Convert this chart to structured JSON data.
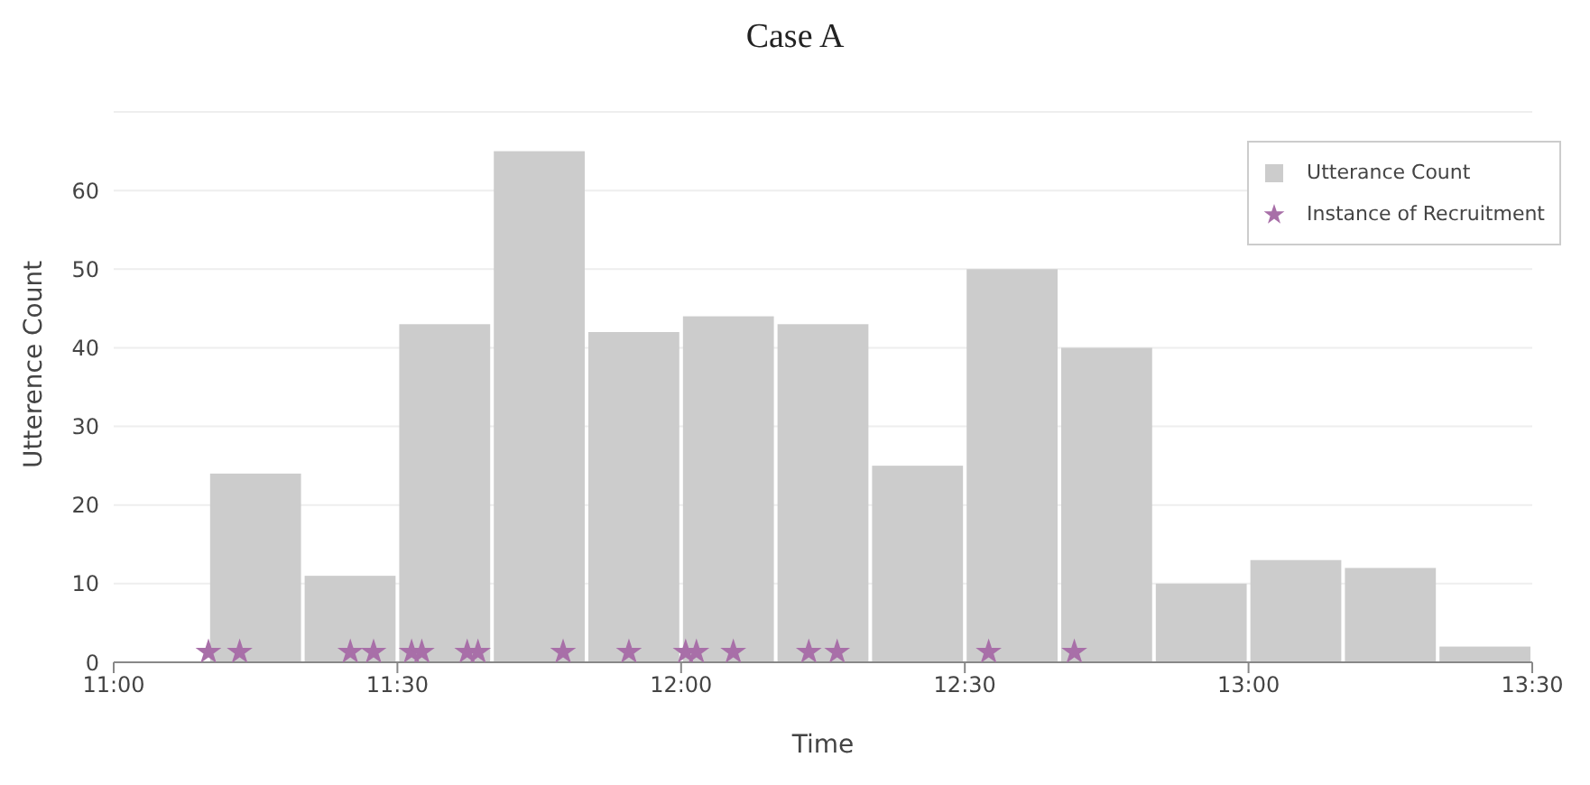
{
  "chart_data": {
    "type": "histogram",
    "title": "Case A",
    "xlabel": "Time",
    "ylabel": "Utterence Count",
    "bins": [
      11.1667,
      11.3333,
      11.5,
      11.6667,
      11.8333,
      12,
      12.1667,
      12.3333,
      12.5,
      12.6667,
      12.8333,
      13,
      13.1667,
      13.3333,
      13.5
    ],
    "series": [
      {
        "name": "Utterance Count",
        "color": "#cccccc",
        "values": [
          24,
          11,
          43,
          65,
          42,
          44,
          43,
          25,
          50,
          40,
          10,
          13,
          12,
          2
        ]
      },
      {
        "name": "Instance of Recruitment",
        "type": "scatter",
        "color": "#a86fa8",
        "x": [
          11.167,
          11.222,
          11.417,
          11.458,
          11.525,
          11.543,
          11.623,
          11.642,
          11.792,
          11.908,
          12.008,
          12.027,
          12.092,
          12.225,
          12.275,
          12.542,
          12.693
        ],
        "values": [
          1.3,
          1.3,
          1.3,
          1.3,
          1.3,
          1.3,
          1.3,
          1.3,
          1.3,
          1.3,
          1.3,
          1.3,
          1.3,
          1.3,
          1.3,
          1.3,
          1.3
        ]
      }
    ],
    "xlim": [
      11,
      13.5
    ],
    "xticks": [
      {
        "value": 11,
        "label": "11:00"
      },
      {
        "value": 11.5,
        "label": "11:30"
      },
      {
        "value": 12,
        "label": "12:00"
      },
      {
        "value": 12.5,
        "label": "12:30"
      },
      {
        "value": 13,
        "label": "13:00"
      },
      {
        "value": 13.5,
        "label": "13:30"
      }
    ],
    "ylim": [
      0,
      70
    ],
    "yticks": [
      0,
      10,
      20,
      30,
      40,
      50,
      60
    ],
    "grid": "y",
    "legend": "top right",
    "marker": "star"
  }
}
